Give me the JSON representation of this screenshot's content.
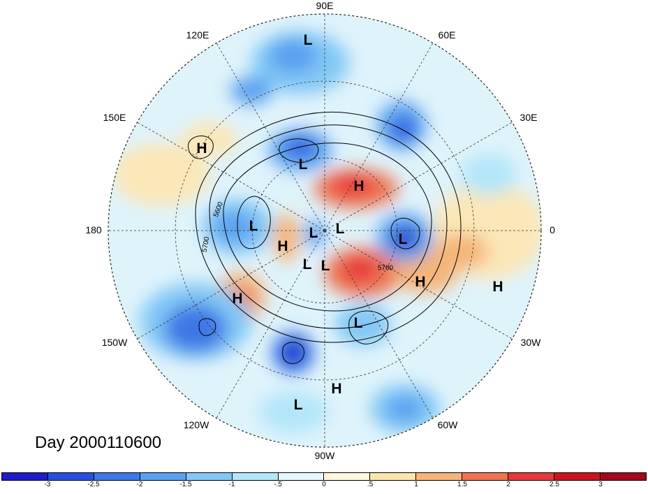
{
  "map": {
    "title": "Day 2000110600",
    "projection": "north polar stereographic",
    "longitude_labels": [
      "90E",
      "60E",
      "30E",
      "0",
      "30W",
      "60W",
      "90W",
      "120W",
      "150W",
      "180",
      "150E",
      "120E"
    ],
    "highs_lows": [
      {
        "label": "L"
      },
      {
        "label": "H"
      },
      {
        "label": "H"
      },
      {
        "label": "L"
      },
      {
        "label": "L"
      },
      {
        "label": "H"
      },
      {
        "label": "L"
      },
      {
        "label": "L"
      },
      {
        "label": "L"
      },
      {
        "label": "L"
      },
      {
        "label": "H"
      },
      {
        "label": "H"
      },
      {
        "label": "H"
      },
      {
        "label": "L"
      },
      {
        "label": "H"
      },
      {
        "label": "L"
      },
      {
        "label": "L"
      }
    ],
    "contour_labels": [
      "5600",
      "5700",
      "5700"
    ]
  },
  "colorbar": {
    "ticks": [
      "-3",
      "-2.5",
      "-2",
      "-1.5",
      "-1",
      "-.5",
      "0",
      ".5",
      "1",
      "1.5",
      "2",
      "2.5",
      "3"
    ],
    "colors": [
      "#1e1ec8",
      "#2850dc",
      "#3c78e6",
      "#5aa0f0",
      "#82c8f5",
      "#b4e6fa",
      "#e6f8ff",
      "#fff8dc",
      "#fae6aa",
      "#f5b478",
      "#ef7350",
      "#e6373c",
      "#c8141e",
      "#a00a1e"
    ]
  }
}
